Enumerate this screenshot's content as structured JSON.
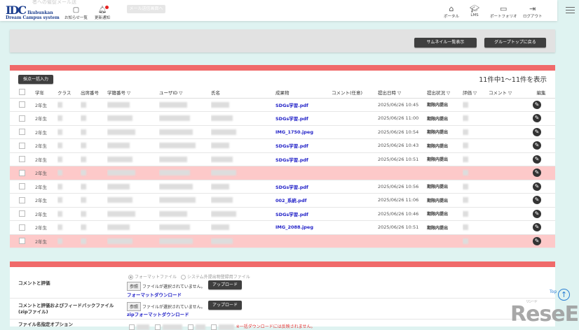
{
  "header": {
    "logo_main": "IDC",
    "logo_sub1": "Ikubunkan",
    "logo_sub2": "Dream Campus system",
    "ghost_text": "者への催促メール送",
    "nav_left": [
      {
        "label": "お知らせ一覧",
        "icon": "chat-icon"
      },
      {
        "label": "更新通知",
        "icon": "bell-icon"
      }
    ],
    "mail_button": "メール送信画面へ",
    "nav_right": [
      {
        "label": "ポータル",
        "icon": "home-icon"
      },
      {
        "label": "LMS",
        "icon": "graduation-cap-icon"
      },
      {
        "label": "ポートフォリオ",
        "icon": "folder-icon"
      },
      {
        "label": "ログアウト",
        "icon": "logout-icon"
      }
    ]
  },
  "toolbar": {
    "thumbnail_button": "サムネイル一覧表示",
    "group_top_button": "グループトップに戻る"
  },
  "table": {
    "bulk_score_button": "採点一括入力",
    "count_text": "11件中1〜11件を表示",
    "columns": [
      "学年",
      "クラス",
      "出席番号",
      "学籍番号 ▽",
      "ユーザID ▽",
      "氏名",
      "成果物",
      "コメント(任意)",
      "提出日時 ▽",
      "提出状況 ▽",
      "評価 ▽",
      "コメント ▽",
      "編集"
    ],
    "rows": [
      {
        "grade": "2年生",
        "file": "SDGs学習.pdf",
        "date": "2025/06/26 10:45",
        "status": "期限内提出",
        "submitted": true
      },
      {
        "grade": "2年生",
        "file": "SDGs学習.pdf",
        "date": "2025/06/26 11:00",
        "status": "期限内提出",
        "submitted": true
      },
      {
        "grade": "2年生",
        "file": "IMG_1750.jpeg",
        "date": "2025/06/26 10:54",
        "status": "期限内提出",
        "submitted": true
      },
      {
        "grade": "2年生",
        "file": "SDGs学習.pdf",
        "date": "2025/06/26 10:43",
        "status": "期限内提出",
        "submitted": true
      },
      {
        "grade": "2年生",
        "file": "SDGs学習.pdf",
        "date": "2025/06/26 10:51",
        "status": "期限内提出",
        "submitted": true
      },
      {
        "grade": "2年生",
        "file": "",
        "date": "",
        "status": "",
        "submitted": false
      },
      {
        "grade": "2年生",
        "file": "SDGs学習.pdf",
        "date": "2025/06/26 10:56",
        "status": "期限内提出",
        "submitted": true
      },
      {
        "grade": "2年生",
        "file": "002_系統.pdf",
        "date": "2025/06/26 11:06",
        "status": "期限内提出",
        "submitted": true
      },
      {
        "grade": "2年生",
        "file": "SDGs学習.pdf",
        "date": "2025/06/26 10:46",
        "status": "期限内提出",
        "submitted": true
      },
      {
        "grade": "2年生",
        "file": "IMG_2088.jpeg",
        "date": "2025/06/26 10:51",
        "status": "期限内提出",
        "submitted": true
      },
      {
        "grade": "2年生",
        "file": "",
        "date": "",
        "status": "",
        "submitted": false
      }
    ]
  },
  "upload": {
    "comment_eval_label": "コメントと評価",
    "radio_format": "フォーマットファイル",
    "radio_system": "システム外提出物登録用ファイル",
    "browse": "参照",
    "no_file": "ファイルが選択されていません。",
    "upload_button": "アップロード",
    "format_download": "フォーマットダウンロード",
    "feedback_label_1": "コメントと評価およびフィードバックファイル",
    "feedback_label_2": "(zipファイル)",
    "zip_download": "zipフォーマットダウンロード",
    "filename_option_label": "ファイル名指定オプション",
    "filename_note": "※一括ダウンロードには反映されません。"
  },
  "page_top": "Top",
  "watermark": {
    "text": "ReseEd",
    "ruby": "リシード"
  },
  "colors": {
    "accent_red": "#f06a6a",
    "link_blue": "#2323c8",
    "unsubmitted_row": "#fdc9c9",
    "background": "#dff3f1"
  }
}
